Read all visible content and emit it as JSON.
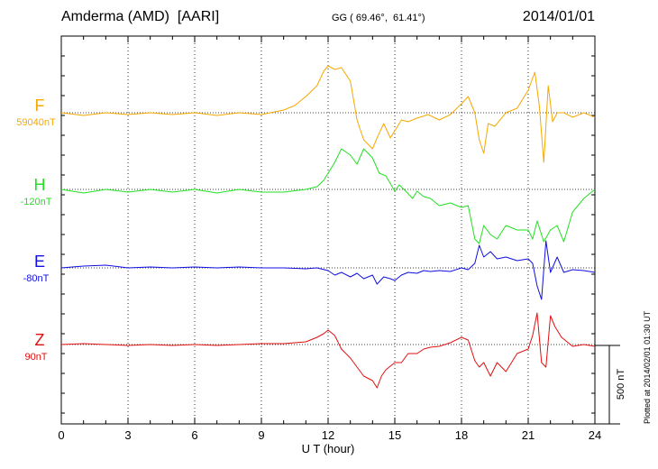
{
  "header": {
    "title": "Amderma (AMD)  [AARI]",
    "coords": "GG ( 69.46°,  61.41°)",
    "date": "2014/01/01"
  },
  "footer_note": "Plotted at 2014/02/01 01:30 UT",
  "chart_data": {
    "type": "line",
    "xlabel": "U T (hour)",
    "xlim": [
      0,
      24
    ],
    "xticks": [
      "0",
      "3",
      "6",
      "9",
      "12",
      "15",
      "18",
      "21",
      "24"
    ],
    "scale_bar": "500 nT",
    "series": [
      {
        "name": "F",
        "baseline": "59040nT",
        "color": "#f5a800",
        "x": [
          0,
          1,
          2,
          3,
          4,
          5,
          6,
          7,
          8,
          9,
          10,
          10.5,
          11,
          11.5,
          11.8,
          12,
          12.3,
          12.6,
          13,
          13.3,
          13.6,
          14,
          14.2,
          14.5,
          14.8,
          15,
          15.3,
          15.6,
          16,
          16.5,
          17,
          17.5,
          18,
          18.3,
          18.6,
          18.8,
          19,
          19.2,
          19.5,
          20,
          20.5,
          21,
          21.3,
          21.5,
          21.7,
          21.9,
          22.1,
          22.3,
          22.6,
          23,
          23.5,
          24
        ],
        "y": [
          0,
          -3,
          0,
          -2,
          0,
          -2,
          0,
          -3,
          0,
          -2,
          3,
          8,
          18,
          30,
          46,
          52,
          48,
          50,
          35,
          -8,
          -30,
          -40,
          -28,
          -12,
          -28,
          -20,
          -8,
          -10,
          -6,
          -2,
          -8,
          -2,
          10,
          18,
          0,
          -30,
          -45,
          -12,
          -15,
          0,
          5,
          25,
          45,
          8,
          -55,
          30,
          -10,
          0,
          0,
          -5,
          0,
          -5
        ]
      },
      {
        "name": "H",
        "baseline": "-120nT",
        "color": "#22e022",
        "x": [
          0,
          1,
          2,
          3,
          4,
          5,
          6,
          7,
          8,
          9,
          10,
          11,
          11.5,
          11.8,
          12,
          12.3,
          12.6,
          13,
          13.3,
          13.6,
          14,
          14.3,
          14.6,
          15,
          15.2,
          15.5,
          15.8,
          16,
          16.3,
          16.6,
          17,
          17.5,
          18,
          18.3,
          18.6,
          18.8,
          19,
          19.3,
          19.6,
          20,
          20.5,
          21,
          21.2,
          21.4,
          21.7,
          22,
          22.3,
          22.6,
          23,
          23.5,
          24
        ],
        "y": [
          0,
          -4,
          0,
          -3,
          0,
          -3,
          0,
          -4,
          0,
          -3,
          -3,
          0,
          3,
          10,
          18,
          30,
          45,
          38,
          28,
          45,
          35,
          18,
          15,
          -2,
          5,
          -2,
          -10,
          -2,
          -8,
          -10,
          -18,
          -15,
          -20,
          -18,
          -55,
          -60,
          -40,
          -50,
          -55,
          -40,
          -45,
          -45,
          -55,
          -35,
          -58,
          -45,
          -40,
          -58,
          -25,
          -10,
          0
        ]
      },
      {
        "name": "E",
        "baseline": "-80nT",
        "color": "#1010e0",
        "x": [
          0,
          1,
          2,
          3,
          4,
          5,
          6,
          7,
          8,
          9,
          10,
          11,
          11.5,
          12,
          12.3,
          12.6,
          13,
          13.3,
          13.6,
          14,
          14.2,
          14.5,
          14.8,
          15,
          15.3,
          15.6,
          16,
          16.3,
          16.6,
          17,
          17.5,
          18,
          18.3,
          18.6,
          18.8,
          19,
          19.3,
          19.6,
          20,
          20.5,
          21,
          21.2,
          21.4,
          21.6,
          21.8,
          22,
          22.3,
          22.6,
          23,
          23.5,
          24
        ],
        "y": [
          0,
          2,
          3,
          0,
          1,
          0,
          1,
          0,
          1,
          0,
          0,
          -1,
          0,
          -3,
          -8,
          -5,
          -10,
          -6,
          -12,
          -8,
          -18,
          -10,
          -12,
          -14,
          -8,
          -5,
          -6,
          -3,
          -4,
          -3,
          -4,
          0,
          -2,
          5,
          25,
          12,
          18,
          10,
          12,
          8,
          10,
          5,
          -20,
          -35,
          30,
          -5,
          12,
          -5,
          -2,
          -3,
          -5
        ]
      },
      {
        "name": "Z",
        "baseline": "90nT",
        "color": "#e01010",
        "x": [
          0,
          1,
          2,
          3,
          4,
          5,
          6,
          7,
          8,
          9,
          10,
          11,
          11.5,
          11.8,
          12,
          12.3,
          12.6,
          13,
          13.3,
          13.6,
          14,
          14.2,
          14.4,
          14.6,
          15,
          15.3,
          15.6,
          16,
          16.3,
          16.6,
          17,
          17.5,
          18,
          18.3,
          18.6,
          18.8,
          19,
          19.3,
          19.6,
          20,
          20.5,
          21,
          21.2,
          21.4,
          21.6,
          21.8,
          22,
          22.2,
          22.5,
          23,
          23.5,
          24
        ],
        "y": [
          0,
          1,
          0,
          -1,
          0,
          -1,
          0,
          -1,
          0,
          1,
          1,
          3,
          8,
          12,
          16,
          10,
          -5,
          -15,
          -25,
          -35,
          -40,
          -48,
          -35,
          -28,
          -20,
          -20,
          -10,
          -10,
          -5,
          -3,
          -2,
          2,
          8,
          5,
          -18,
          -25,
          -20,
          -35,
          -20,
          -30,
          -10,
          -5,
          10,
          35,
          -20,
          -25,
          32,
          20,
          8,
          -2,
          0,
          -2
        ]
      }
    ]
  }
}
